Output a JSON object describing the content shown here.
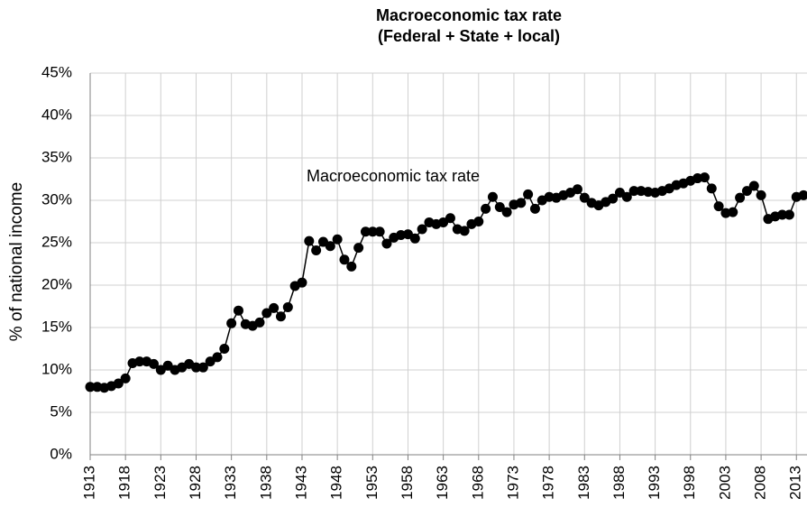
{
  "chart_data": {
    "type": "line",
    "title": "Macroeconomic tax rate",
    "subtitle": "(Federal + State + local)",
    "y_label": "% of national income",
    "x": [
      1913,
      1914,
      1915,
      1916,
      1917,
      1918,
      1919,
      1920,
      1921,
      1922,
      1923,
      1924,
      1925,
      1926,
      1927,
      1928,
      1929,
      1930,
      1931,
      1932,
      1933,
      1934,
      1935,
      1936,
      1937,
      1938,
      1939,
      1940,
      1941,
      1942,
      1943,
      1944,
      1945,
      1946,
      1947,
      1948,
      1949,
      1950,
      1951,
      1952,
      1953,
      1954,
      1955,
      1956,
      1957,
      1958,
      1959,
      1960,
      1961,
      1962,
      1963,
      1964,
      1965,
      1966,
      1967,
      1968,
      1969,
      1970,
      1971,
      1972,
      1973,
      1974,
      1975,
      1976,
      1977,
      1978,
      1979,
      1980,
      1981,
      1982,
      1983,
      1984,
      1985,
      1986,
      1987,
      1988,
      1989,
      1990,
      1991,
      1992,
      1993,
      1994,
      1995,
      1996,
      1997,
      1998,
      1999,
      2000,
      2001,
      2002,
      2003,
      2004,
      2005,
      2006,
      2007,
      2008,
      2009,
      2010,
      2011,
      2012,
      2013,
      2014
    ],
    "series": [
      {
        "name": "Macroeconomic tax rate",
        "color": "#000000",
        "values": [
          8.0,
          8.0,
          7.9,
          8.1,
          8.4,
          9.0,
          10.8,
          11.0,
          11.0,
          10.7,
          10.0,
          10.5,
          10.0,
          10.3,
          10.7,
          10.3,
          10.3,
          11.0,
          11.5,
          12.5,
          15.5,
          17.0,
          15.4,
          15.2,
          15.6,
          16.7,
          17.3,
          16.3,
          17.4,
          19.9,
          20.3,
          25.2,
          24.1,
          25.1,
          24.6,
          25.4,
          23.0,
          22.2,
          24.4,
          26.3,
          26.3,
          26.3,
          24.9,
          25.6,
          25.9,
          26.0,
          25.5,
          26.6,
          27.4,
          27.2,
          27.4,
          27.9,
          26.6,
          26.4,
          27.2,
          27.5,
          29.0,
          30.4,
          29.2,
          28.6,
          29.5,
          29.7,
          30.7,
          29.0,
          30.0,
          30.4,
          30.3,
          30.6,
          30.9,
          31.3,
          30.3,
          29.7,
          29.4,
          29.8,
          30.2,
          30.9,
          30.4,
          31.1,
          31.1,
          31.0,
          30.9,
          31.1,
          31.4,
          31.8,
          32.0,
          32.3,
          32.6,
          32.7,
          31.4,
          29.3,
          28.5,
          28.6,
          30.3,
          31.1,
          31.7,
          30.6,
          27.8,
          28.1,
          28.3,
          28.3,
          30.4,
          30.6
        ]
      }
    ],
    "xlim": [
      1913,
      2014.5
    ],
    "xticks": [
      1913,
      1918,
      1923,
      1928,
      1933,
      1938,
      1943,
      1948,
      1953,
      1958,
      1963,
      1968,
      1973,
      1978,
      1983,
      1988,
      1993,
      1998,
      2003,
      2008,
      2013
    ],
    "ylim": [
      0,
      45
    ],
    "yticks": [
      {
        "value": 0,
        "label": "0%"
      },
      {
        "value": 5,
        "label": "5%"
      },
      {
        "value": 10,
        "label": "10%"
      },
      {
        "value": 15,
        "label": "15%"
      },
      {
        "value": 20,
        "label": "20%"
      },
      {
        "value": 25,
        "label": "25%"
      },
      {
        "value": 30,
        "label": "30%"
      },
      {
        "value": 35,
        "label": "35%"
      },
      {
        "value": 40,
        "label": "40%"
      },
      {
        "value": 45,
        "label": "45%"
      }
    ],
    "grid": true
  }
}
